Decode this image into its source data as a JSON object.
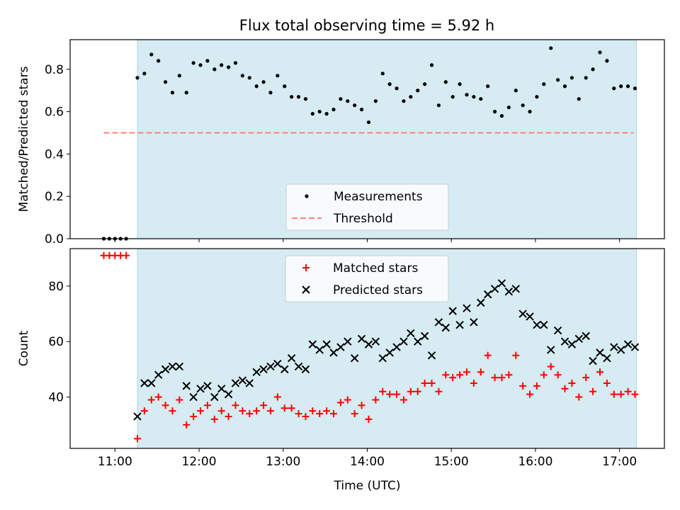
{
  "title": "Flux total observing time = 5.92 h",
  "colors": {
    "shade": "#add8e6",
    "measurements": "#000000",
    "threshold": "#ff7f7f",
    "matched": "#ff0000",
    "predicted": "#000000"
  },
  "chart_data": [
    {
      "type": "scatter",
      "ylabel": "Matched/Predicted stars",
      "xlim": [
        "10:28",
        "17:32"
      ],
      "ylim": [
        0,
        0.94
      ],
      "yticks": [
        0.0,
        0.2,
        0.4,
        0.6,
        0.8
      ],
      "yticklabels": [
        "0.0",
        "0.2",
        "0.4",
        "0.6",
        "0.8"
      ],
      "shaded_span": [
        "11:16",
        "17:12"
      ],
      "legend": {
        "position": "lower center",
        "entries": [
          "Measurements",
          "Threshold"
        ]
      },
      "threshold": {
        "name": "Threshold",
        "value": 0.5,
        "x_range": [
          "10:52",
          "17:10"
        ],
        "style": "dashed"
      },
      "series": [
        {
          "name": "Measurements",
          "marker": "dot",
          "x": [
            "10:52",
            "10:56",
            "11:00",
            "11:04",
            "11:08",
            "11:16",
            "11:21",
            "11:26",
            "11:31",
            "11:36",
            "11:41",
            "11:46",
            "11:51",
            "11:56",
            "12:01",
            "12:06",
            "12:11",
            "12:16",
            "12:21",
            "12:26",
            "12:31",
            "12:36",
            "12:41",
            "12:46",
            "12:51",
            "12:56",
            "13:01",
            "13:06",
            "13:11",
            "13:16",
            "13:21",
            "13:26",
            "13:31",
            "13:36",
            "13:41",
            "13:46",
            "13:51",
            "13:56",
            "14:01",
            "14:06",
            "14:11",
            "14:16",
            "14:21",
            "14:26",
            "14:31",
            "14:36",
            "14:41",
            "14:46",
            "14:51",
            "14:56",
            "15:01",
            "15:06",
            "15:11",
            "15:16",
            "15:21",
            "15:26",
            "15:31",
            "15:36",
            "15:41",
            "15:46",
            "15:51",
            "15:56",
            "16:01",
            "16:06",
            "16:11",
            "16:16",
            "16:21",
            "16:26",
            "16:31",
            "16:36",
            "16:41",
            "16:46",
            "16:51",
            "16:56",
            "17:01",
            "17:06",
            "17:11"
          ],
          "y": [
            0.0,
            0.0,
            0.0,
            0.0,
            0.0,
            0.76,
            0.78,
            0.87,
            0.84,
            0.74,
            0.69,
            0.77,
            0.69,
            0.83,
            0.82,
            0.84,
            0.8,
            0.82,
            0.81,
            0.83,
            0.77,
            0.76,
            0.72,
            0.74,
            0.69,
            0.77,
            0.72,
            0.67,
            0.67,
            0.66,
            0.59,
            0.6,
            0.59,
            0.61,
            0.66,
            0.65,
            0.63,
            0.61,
            0.55,
            0.65,
            0.78,
            0.73,
            0.71,
            0.65,
            0.67,
            0.7,
            0.73,
            0.82,
            0.63,
            0.74,
            0.67,
            0.73,
            0.68,
            0.67,
            0.66,
            0.72,
            0.6,
            0.58,
            0.62,
            0.7,
            0.63,
            0.6,
            0.67,
            0.73,
            0.9,
            0.75,
            0.72,
            0.76,
            0.66,
            0.76,
            0.8,
            0.88,
            0.84,
            0.71,
            0.72,
            0.72,
            0.71
          ]
        }
      ]
    },
    {
      "type": "scatter",
      "xlabel": "Time (UTC)",
      "ylabel": "Count",
      "xlim": [
        "10:28",
        "17:32"
      ],
      "ylim": [
        21.5,
        93.5
      ],
      "xticks": [
        "11:00",
        "12:00",
        "13:00",
        "14:00",
        "15:00",
        "16:00",
        "17:00"
      ],
      "yticks": [
        40,
        60,
        80
      ],
      "shaded_span": [
        "11:16",
        "17:12"
      ],
      "legend": {
        "position": "upper center",
        "entries": [
          "Matched stars",
          "Predicted stars"
        ]
      },
      "series": [
        {
          "name": "Matched stars",
          "marker": "plus",
          "x": [
            "10:52",
            "10:56",
            "11:00",
            "11:04",
            "11:08",
            "11:16",
            "11:21",
            "11:26",
            "11:31",
            "11:36",
            "11:41",
            "11:46",
            "11:51",
            "11:56",
            "12:01",
            "12:06",
            "12:11",
            "12:16",
            "12:21",
            "12:26",
            "12:31",
            "12:36",
            "12:41",
            "12:46",
            "12:51",
            "12:56",
            "13:01",
            "13:06",
            "13:11",
            "13:16",
            "13:21",
            "13:26",
            "13:31",
            "13:36",
            "13:41",
            "13:46",
            "13:51",
            "13:56",
            "14:01",
            "14:06",
            "14:11",
            "14:16",
            "14:21",
            "14:26",
            "14:31",
            "14:36",
            "14:41",
            "14:46",
            "14:51",
            "14:56",
            "15:01",
            "15:06",
            "15:11",
            "15:16",
            "15:21",
            "15:26",
            "15:31",
            "15:36",
            "15:41",
            "15:46",
            "15:51",
            "15:56",
            "16:01",
            "16:06",
            "16:11",
            "16:16",
            "16:21",
            "16:26",
            "16:31",
            "16:36",
            "16:41",
            "16:46",
            "16:51",
            "16:56",
            "17:01",
            "17:06",
            "17:11"
          ],
          "y": [
            91,
            91,
            91,
            91,
            91,
            25,
            35,
            39,
            40,
            37,
            35,
            39,
            30,
            33,
            35,
            37,
            32,
            35,
            33,
            37,
            35,
            34,
            35,
            37,
            35,
            40,
            36,
            36,
            34,
            33,
            35,
            34,
            35,
            34,
            38,
            39,
            34,
            37,
            32,
            39,
            42,
            41,
            41,
            39,
            42,
            42,
            45,
            45,
            42,
            48,
            47,
            48,
            49,
            45,
            49,
            55,
            47,
            47,
            48,
            55,
            44,
            41,
            44,
            48,
            51,
            48,
            43,
            45,
            40,
            47,
            42,
            49,
            45,
            41,
            41,
            42,
            41
          ]
        },
        {
          "name": "Predicted stars",
          "marker": "x",
          "x": [
            "11:16",
            "11:21",
            "11:26",
            "11:31",
            "11:36",
            "11:41",
            "11:46",
            "11:51",
            "11:56",
            "12:01",
            "12:06",
            "12:11",
            "12:16",
            "12:21",
            "12:26",
            "12:31",
            "12:36",
            "12:41",
            "12:46",
            "12:51",
            "12:56",
            "13:01",
            "13:06",
            "13:11",
            "13:16",
            "13:21",
            "13:26",
            "13:31",
            "13:36",
            "13:41",
            "13:46",
            "13:51",
            "13:56",
            "14:01",
            "14:06",
            "14:11",
            "14:16",
            "14:21",
            "14:26",
            "14:31",
            "14:36",
            "14:41",
            "14:46",
            "14:51",
            "14:56",
            "15:01",
            "15:06",
            "15:11",
            "15:16",
            "15:21",
            "15:26",
            "15:31",
            "15:36",
            "15:41",
            "15:46",
            "15:51",
            "15:56",
            "16:01",
            "16:06",
            "16:11",
            "16:16",
            "16:21",
            "16:26",
            "16:31",
            "16:36",
            "16:41",
            "16:46",
            "16:51",
            "16:56",
            "17:01",
            "17:06",
            "17:11"
          ],
          "y": [
            33,
            45,
            45,
            48,
            50,
            51,
            51,
            44,
            40,
            43,
            44,
            40,
            43,
            41,
            45,
            46,
            45,
            49,
            50,
            51,
            52,
            50,
            54,
            51,
            50,
            59,
            57,
            59,
            56,
            58,
            60,
            54,
            61,
            59,
            60,
            54,
            56,
            58,
            60,
            63,
            60,
            62,
            55,
            67,
            65,
            71,
            66,
            72,
            67,
            74,
            77,
            79,
            81,
            78,
            79,
            70,
            69,
            66,
            66,
            57,
            64,
            60,
            59,
            61,
            62,
            53,
            56,
            54,
            58,
            57,
            59,
            58
          ]
        }
      ]
    }
  ]
}
